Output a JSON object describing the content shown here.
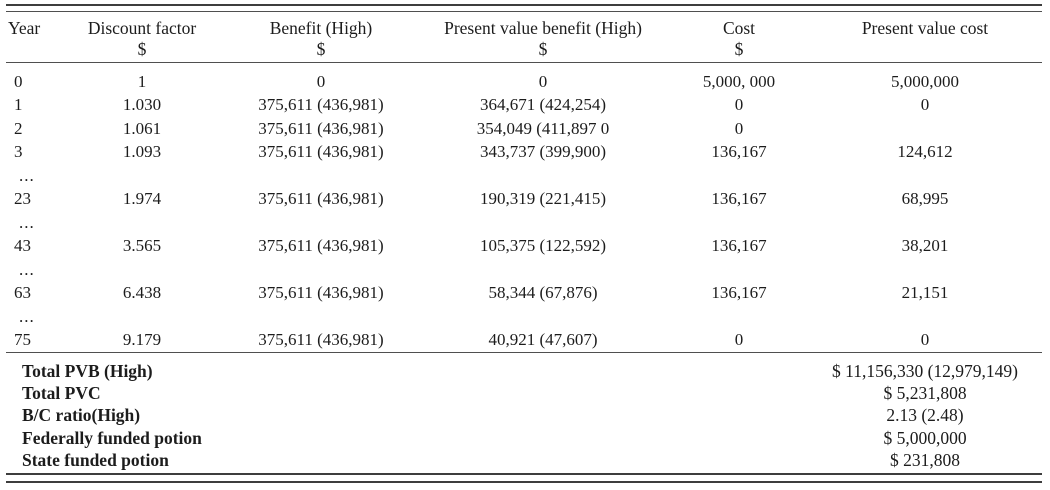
{
  "table": {
    "columns": [
      {
        "label": "Year",
        "sub": ""
      },
      {
        "label": "Discount factor",
        "sub": "$"
      },
      {
        "label": "Benefit (High)",
        "sub": "$"
      },
      {
        "label": "Present value benefit (High)",
        "sub": "$"
      },
      {
        "label": "Cost",
        "sub": "$"
      },
      {
        "label": "Present value cost",
        "sub": ""
      }
    ],
    "rows": [
      [
        "0",
        "1",
        "0",
        "0",
        "5,000, 000",
        "5,000,000"
      ],
      [
        "1",
        "1.030",
        "375,611 (436,981)",
        "364,671 (424,254)",
        "0",
        "0"
      ],
      [
        "2",
        "1.061",
        "375,611 (436,981)",
        "354,049 (411,897 0",
        "0",
        ""
      ],
      [
        "3",
        "1.093",
        "375,611 (436,981)",
        "343,737 (399,900)",
        "136,167",
        "124,612"
      ],
      [
        "...",
        "",
        "",
        "",
        "",
        ""
      ],
      [
        "23",
        "1.974",
        "375,611 (436,981)",
        "190,319 (221,415)",
        "136,167",
        "68,995"
      ],
      [
        "...",
        "",
        "",
        "",
        "",
        ""
      ],
      [
        "43",
        "3.565",
        "375,611 (436,981)",
        "105,375 (122,592)",
        "136,167",
        "38,201"
      ],
      [
        "...",
        "",
        "",
        "",
        "",
        ""
      ],
      [
        "63",
        "6.438",
        "375,611 (436,981)",
        "58,344 (67,876)",
        "136,167",
        "21,151"
      ],
      [
        "...",
        "",
        "",
        "",
        "",
        ""
      ],
      [
        "75",
        "9.179",
        "375,611 (436,981)",
        "40,921 (47,607)",
        "0",
        "0"
      ]
    ],
    "summary": [
      {
        "label": "Total PVB (High)",
        "value": "$ 11,156,330 (12,979,149)"
      },
      {
        "label": "Total PVC",
        "value": "$ 5,231,808"
      },
      {
        "label": "B/C ratio(High)",
        "value": "2.13 (2.48)"
      },
      {
        "label": "Federally funded potion",
        "value": "$ 5,000,000"
      },
      {
        "label": "State funded potion",
        "value": "$ 231,808"
      }
    ]
  },
  "colors": {
    "text": "#1c1c1c",
    "rule": "#4f4f4f",
    "background": "#ffffff"
  }
}
